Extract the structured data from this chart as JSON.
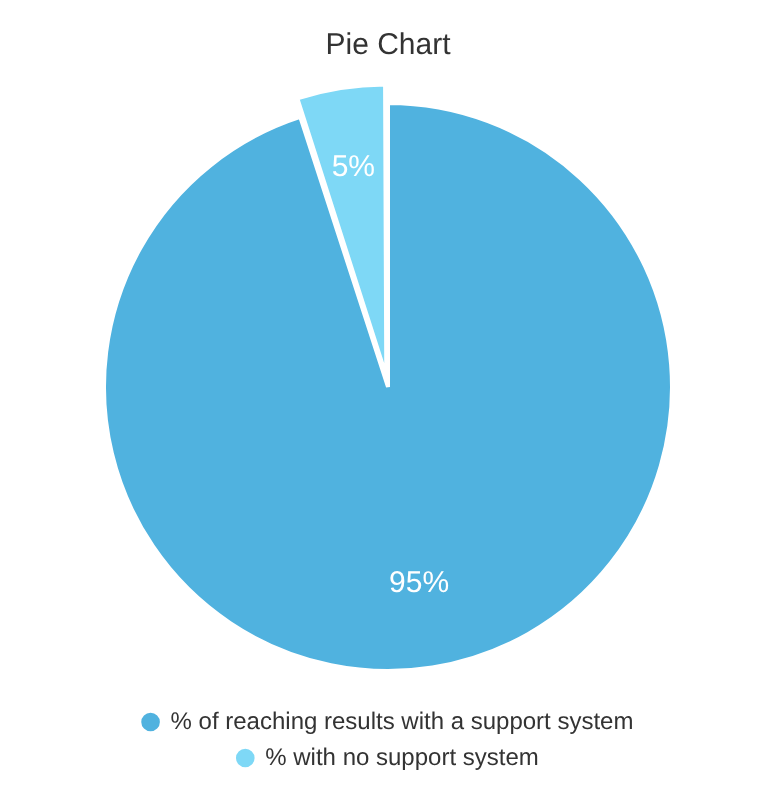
{
  "chart_data": {
    "type": "pie",
    "title": "Pie Chart",
    "categories": [
      "% of reaching results with a support system",
      "% with no support system"
    ],
    "values": [
      95,
      5
    ],
    "colors": [
      "#50b2df",
      "#7ed8f6"
    ],
    "value_labels": [
      "95%",
      "5%"
    ],
    "legend": "bottom"
  }
}
